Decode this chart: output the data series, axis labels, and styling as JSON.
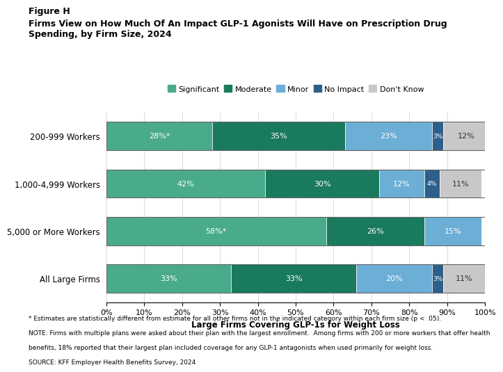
{
  "title_line1": "Figure H",
  "title_line2": "Firms View on How Much Of An Impact GLP-1 Agonists Will Have on Prescription Drug\nSpending, by Firm Size, 2024",
  "categories": [
    "200-999 Workers",
    "1,000-4,999 Workers",
    "5,000 or More Workers",
    "All Large Firms"
  ],
  "segments": [
    "Significant",
    "Moderate",
    "Minor",
    "No Impact",
    "Don't Know"
  ],
  "colors": [
    "#4aab8c",
    "#1a7a5e",
    "#6baed6",
    "#2c5f8a",
    "#c8c8c8"
  ],
  "data": [
    [
      28,
      35,
      23,
      3,
      12
    ],
    [
      42,
      30,
      12,
      4,
      11
    ],
    [
      58,
      26,
      15,
      0,
      0
    ],
    [
      33,
      33,
      20,
      3,
      11
    ]
  ],
  "labels": [
    [
      "28%*",
      "35%",
      "23%",
      "3%",
      "12%"
    ],
    [
      "42%",
      "30%",
      "12%",
      "4%",
      "11%"
    ],
    [
      "58%*",
      "26%",
      "15%",
      "",
      ""
    ],
    [
      "33%",
      "33%",
      "20%",
      "3%",
      "11%"
    ]
  ],
  "xlabel": "Large Firms Covering GLP-1s for Weight Loss",
  "footnote1": "* Estimates are statistically different from estimate for all other firms not in the indicated category within each firm size (p < .05).",
  "footnote2": "NOTE: Firms with multiple plans were asked about their plan with the largest enrollment.  Among firms with 200 or more workers that offer health",
  "footnote3": "benefits, 18% reported that their largest plan included coverage for any GLP-1 antagonists when used primarily for weight loss.",
  "footnote4": "SOURCE: KFF Employer Health Benefits Survey, 2024",
  "xlim": [
    0,
    100
  ],
  "xtick_labels": [
    "0%",
    "10%",
    "20%",
    "30%",
    "40%",
    "50%",
    "60%",
    "70%",
    "80%",
    "90%",
    "100%"
  ]
}
